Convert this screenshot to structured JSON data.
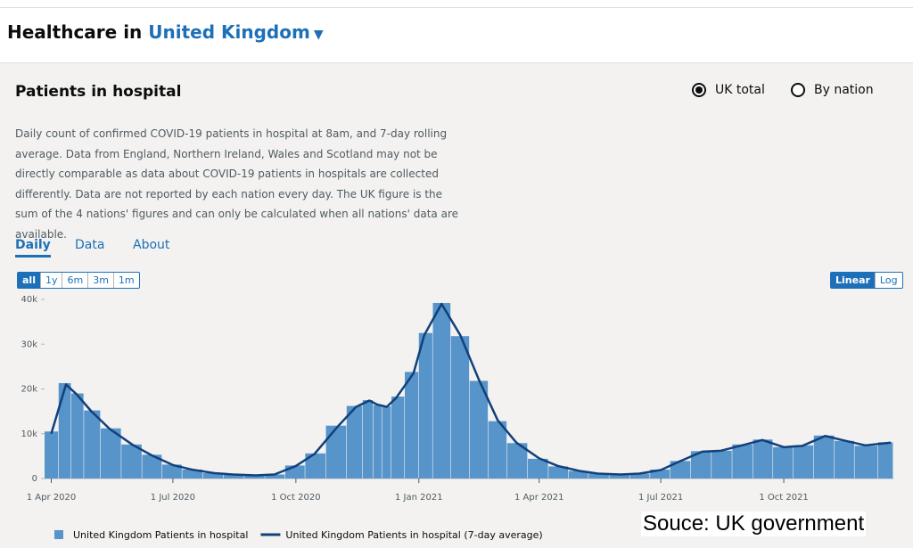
{
  "header": {
    "title": "Healthcare in",
    "location": "United Kingdom"
  },
  "card": {
    "title": "Patients in hospital",
    "options": [
      "UK total",
      "By nation"
    ],
    "description": "Daily count of confirmed COVID-19 patients in hospital at 8am, and 7-day rolling average. Data from England, Northern Ireland, Wales and Scotland may not be directly comparable as data about COVID-19 patients in hospitals are collected differently. Data are not reported by each nation every day. The UK figure is the sum of the 4 nations' figures and can only be calculated when all nations' data are available.",
    "tabs": [
      "Daily",
      "Data",
      "About"
    ],
    "ranges": [
      "all",
      "1y",
      "6m",
      "3m",
      "1m"
    ],
    "scales": [
      "Linear",
      "Log"
    ]
  },
  "source": "Souce: UK government",
  "chart_data": {
    "type": "bar",
    "x": [
      "2020-04-01",
      "2020-04-12",
      "2020-04-20",
      "2020-05-01",
      "2020-05-15",
      "2020-06-01",
      "2020-06-15",
      "2020-07-01",
      "2020-07-15",
      "2020-08-01",
      "2020-08-15",
      "2020-09-01",
      "2020-09-15",
      "2020-10-01",
      "2020-10-15",
      "2020-11-01",
      "2020-11-15",
      "2020-11-25",
      "2020-12-01",
      "2020-12-08",
      "2020-12-15",
      "2020-12-28",
      "2021-01-05",
      "2021-01-18",
      "2021-02-01",
      "2021-02-15",
      "2021-03-01",
      "2021-03-15",
      "2021-04-01",
      "2021-04-15",
      "2021-05-01",
      "2021-05-15",
      "2021-06-01",
      "2021-06-15",
      "2021-07-01",
      "2021-07-15",
      "2021-08-01",
      "2021-08-15",
      "2021-09-01",
      "2021-09-15",
      "2021-10-01",
      "2021-10-15",
      "2021-11-01",
      "2021-11-15",
      "2021-12-01",
      "2021-12-20"
    ],
    "series": [
      {
        "name": "United Kingdom Patients in hospital",
        "type": "bar",
        "color": "#5694ca",
        "values": [
          10500,
          21300,
          19000,
          15200,
          11200,
          7600,
          5300,
          3100,
          2000,
          1200,
          900,
          700,
          900,
          2900,
          5600,
          11800,
          16200,
          17500,
          16400,
          16100,
          18300,
          23800,
          32500,
          39200,
          31800,
          21800,
          12800,
          7900,
          4400,
          2700,
          1700,
          1100,
          900,
          1100,
          2000,
          3900,
          6100,
          6200,
          7600,
          8700,
          7000,
          7400,
          9600,
          8400,
          7300,
          8100
        ]
      },
      {
        "name": "United Kingdom Patients in hospital (7-day average)",
        "type": "line",
        "color": "#12407a",
        "values": [
          10000,
          21000,
          18800,
          15000,
          11000,
          7500,
          5200,
          3000,
          2000,
          1200,
          900,
          700,
          900,
          2800,
          5500,
          11500,
          16000,
          17400,
          16500,
          16000,
          18000,
          23500,
          32000,
          39000,
          32000,
          22000,
          13000,
          8000,
          4500,
          2800,
          1700,
          1100,
          900,
          1100,
          1900,
          3800,
          6000,
          6200,
          7500,
          8600,
          7000,
          7300,
          9500,
          8500,
          7400,
          8000
        ]
      }
    ],
    "xlim": [
      "2020-03-27",
      "2021-12-22"
    ],
    "xticks": [
      {
        "value": "2020-04-01",
        "label": "1 Apr 2020"
      },
      {
        "value": "2020-07-01",
        "label": "1 Jul 2020"
      },
      {
        "value": "2020-10-01",
        "label": "1 Oct 2020"
      },
      {
        "value": "2021-01-01",
        "label": "1 Jan 2021"
      },
      {
        "value": "2021-04-01",
        "label": "1 Apr 2021"
      },
      {
        "value": "2021-07-01",
        "label": "1 Jul 2021"
      },
      {
        "value": "2021-10-01",
        "label": "1 Oct 2021"
      }
    ],
    "ylim": [
      0,
      40000
    ],
    "yticks": [
      0,
      {
        "value": 10000,
        "label": "10k"
      },
      {
        "value": 20000,
        "label": "20k"
      },
      {
        "value": 30000,
        "label": "30k"
      },
      {
        "value": 40000,
        "label": "40k"
      }
    ],
    "grid": false,
    "legend": "bottom"
  }
}
